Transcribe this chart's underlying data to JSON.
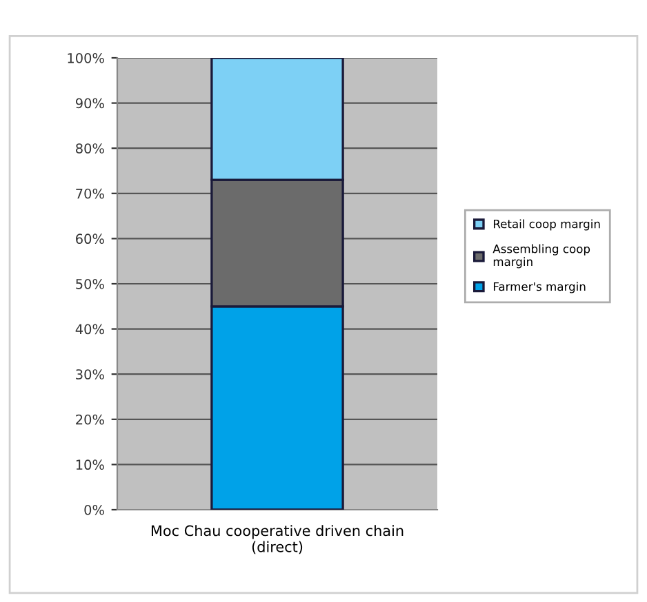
{
  "chart_data": {
    "type": "bar",
    "stacked": true,
    "categories": [
      "Moc Chau cooperative driven chain\n(direct)"
    ],
    "series": [
      {
        "name": "Farmer's margin",
        "color": "#00a2e8",
        "values": [
          45
        ]
      },
      {
        "name": "Assembling coop\nmargin",
        "color": "#6b6b6b",
        "values": [
          28
        ]
      },
      {
        "name": "Retail coop margin",
        "color": "#7dd0f5",
        "values": [
          27
        ]
      }
    ],
    "ylim": [
      0,
      100
    ],
    "yticks": [
      {
        "value": 0,
        "label": "0%"
      },
      {
        "value": 10,
        "label": "10%"
      },
      {
        "value": 20,
        "label": "20%"
      },
      {
        "value": 30,
        "label": "30%"
      },
      {
        "value": 40,
        "label": "40%"
      },
      {
        "value": 50,
        "label": "50%"
      },
      {
        "value": 60,
        "label": "60%"
      },
      {
        "value": 70,
        "label": "70%"
      },
      {
        "value": 80,
        "label": "80%"
      },
      {
        "value": 90,
        "label": "90%"
      },
      {
        "value": 100,
        "label": "100%"
      }
    ],
    "grid": "y",
    "legend": "right"
  }
}
